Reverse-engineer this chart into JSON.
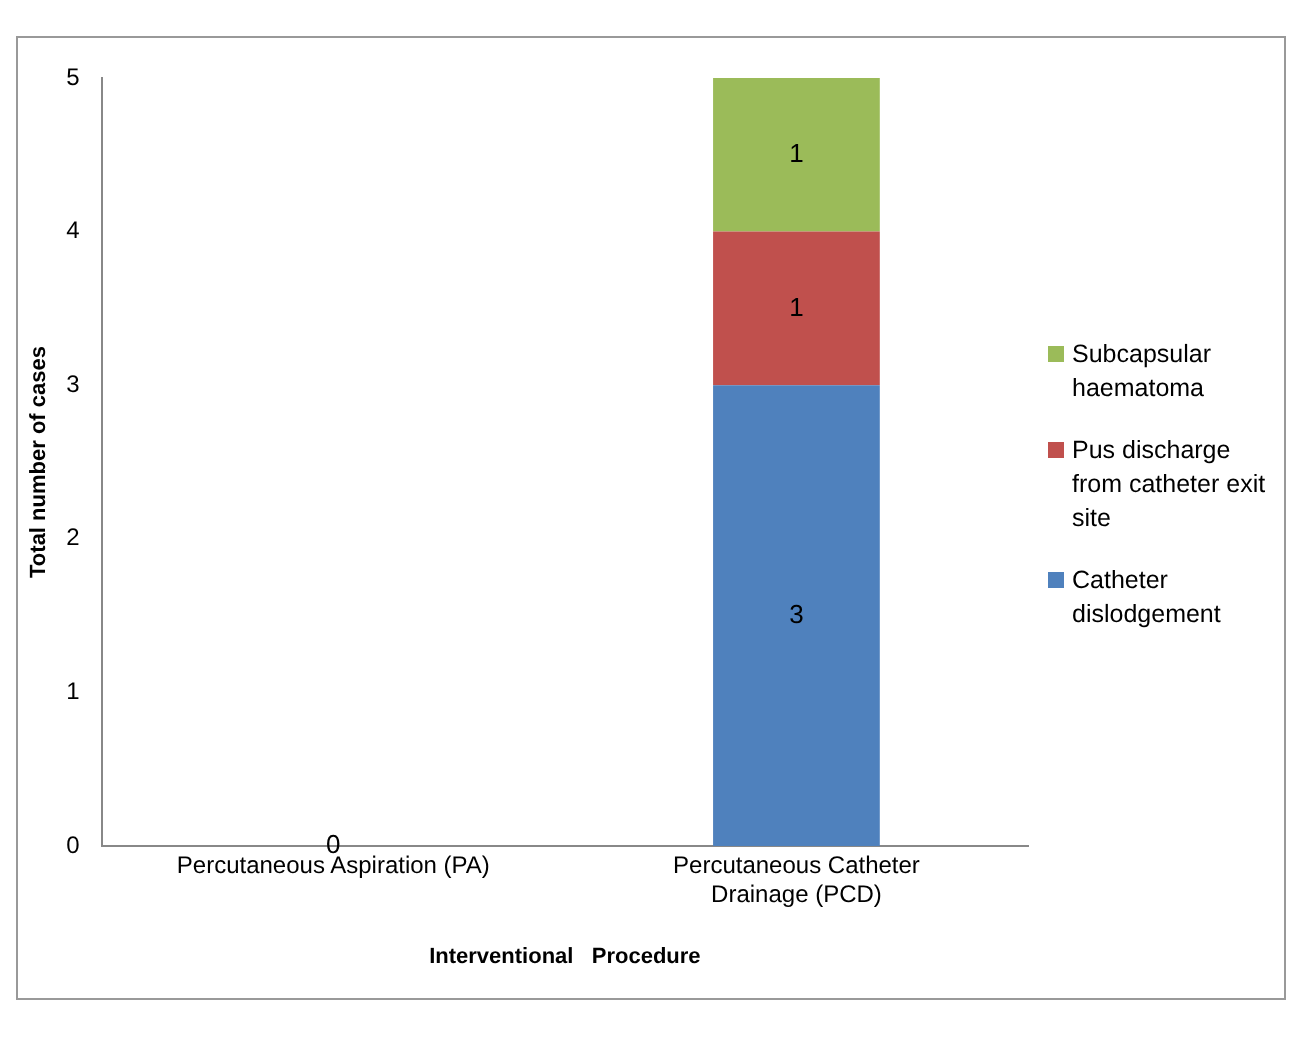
{
  "chart_data": {
    "type": "bar",
    "stacked": true,
    "xlabel": "Interventional   Procedure",
    "ylabel": "Total number of cases",
    "categories": [
      "Percutaneous Aspiration (PA)",
      "Percutaneous Catheter Drainage (PCD)"
    ],
    "series": [
      {
        "name": "Catheter dislodgement",
        "color": "#4f81bd",
        "values": [
          0,
          3
        ],
        "value_labels": [
          "0",
          "3"
        ]
      },
      {
        "name": "Pus discharge from catheter exit site",
        "color": "#c0504d",
        "values": [
          0,
          1
        ],
        "value_labels": [
          null,
          "1"
        ]
      },
      {
        "name": "Subcapsular haematoma",
        "color": "#9bbb59",
        "values": [
          0,
          1
        ],
        "value_labels": [
          null,
          "1"
        ]
      }
    ],
    "ylim": [
      0,
      5
    ],
    "yticks": [
      0,
      1,
      2,
      3,
      4,
      5
    ],
    "grid": false,
    "legend": "right"
  }
}
